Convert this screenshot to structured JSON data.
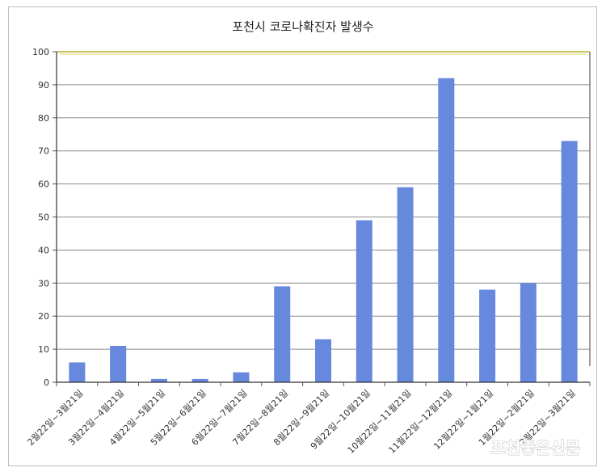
{
  "chart_data": {
    "type": "bar",
    "title": "포천시 코로나확진자 발생수",
    "xlabel": "",
    "ylabel": "",
    "ylim": [
      0,
      100
    ],
    "yticks": [
      0,
      10,
      20,
      30,
      40,
      50,
      60,
      70,
      80,
      90,
      100
    ],
    "grid": true,
    "legend": "none",
    "bar_color": "#6688dd",
    "categories": [
      "2월22일~3월21일",
      "3월22일~4월21일",
      "4월22일~5월21일",
      "5월22일~6월21일",
      "6월22일~7월21일",
      "7월22일~8월21일",
      "8월22일~9월21일",
      "9월22일~10월21일",
      "10월22일~11월21일",
      "11월22일~12월21일",
      "12월22일~1월21일",
      "1월22일~2월21일",
      "2월22일~3월21일"
    ],
    "values": [
      6,
      11,
      1,
      1,
      3,
      29,
      13,
      49,
      59,
      92,
      28,
      30,
      73
    ]
  },
  "watermark": "포천좋은신문"
}
